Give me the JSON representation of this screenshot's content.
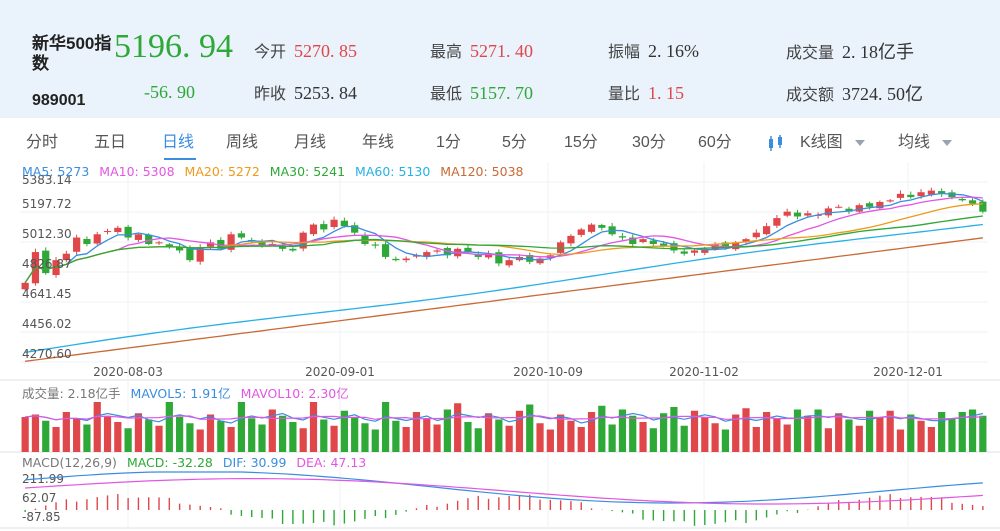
{
  "header": {
    "name": "新华500指数",
    "code": "989001",
    "last": "5196. 94",
    "change": "-56. 90",
    "stats": [
      {
        "label": "今开",
        "value": "5270. 85",
        "color": "#e0474a",
        "id": "open"
      },
      {
        "label": "最高",
        "value": "5271. 40",
        "color": "#e0474a",
        "id": "high"
      },
      {
        "label": "振幅",
        "value": "2. 16%",
        "color": "#444444",
        "id": "amplitude"
      },
      {
        "label": "成交量",
        "value": "2. 18亿手",
        "color": "#444444",
        "id": "volume"
      },
      {
        "label": "昨收",
        "value": "5253. 84",
        "color": "#444444",
        "id": "prev-close"
      },
      {
        "label": "最低",
        "value": "5157. 70",
        "color": "#2ea836",
        "id": "low"
      },
      {
        "label": "量比",
        "value": "1. 15",
        "color": "#e0474a",
        "id": "volume-ratio"
      },
      {
        "label": "成交额",
        "value": "3724. 50亿",
        "color": "#444444",
        "id": "turnover"
      }
    ]
  },
  "tabs": [
    "分时",
    "五日",
    "日线",
    "周线",
    "月线",
    "年线",
    "1分",
    "5分",
    "15分",
    "30分",
    "60分"
  ],
  "active_tab": "日线",
  "dropdowns": {
    "kline": "K线图",
    "ma": "均线"
  },
  "icons": {
    "kline": "candlestick-icon",
    "dropdown": "chevron-down-icon"
  },
  "colors": {
    "up": "#e0474a",
    "down": "#2ea836",
    "accent": "#3a8de0",
    "header_bg": "#eaf2fb"
  },
  "chart_data": {
    "type": "candlestick",
    "ma_legend": [
      {
        "text": "MA5: 5273",
        "color": "#3a8de0"
      },
      {
        "text": "MA10: 5308",
        "color": "#e356e3"
      },
      {
        "text": "MA20: 5272",
        "color": "#ee9a1a"
      },
      {
        "text": "MA30: 5241",
        "color": "#2ea836"
      },
      {
        "text": "MA60: 5130",
        "color": "#27b0e6"
      },
      {
        "text": "MA120: 5038",
        "color": "#c86a35"
      }
    ],
    "y_ticks": [
      "5383.14",
      "5197.72",
      "5012.30",
      "4826.87",
      "4641.45",
      "4456.02",
      "4270.60"
    ],
    "y_range": [
      4270.6,
      5383.14
    ],
    "dates": [
      "2020-08-03",
      "2020-09-01",
      "2020-10-09",
      "2020-11-02",
      "2020-12-01"
    ],
    "closes": [
      4760,
      4950,
      4820,
      4900,
      4940,
      5040,
      5000,
      5060,
      5080,
      5100,
      5040,
      5060,
      5000,
      5010,
      4980,
      4960,
      4900,
      4980,
      5010,
      4970,
      5060,
      5040,
      5020,
      4990,
      5000,
      4970,
      4960,
      5070,
      5120,
      5090,
      5150,
      5110,
      5070,
      5000,
      4990,
      4920,
      4900,
      4910,
      4930,
      4950,
      4960,
      4930,
      4970,
      4950,
      4920,
      4940,
      4880,
      4900,
      4920,
      4890,
      4910,
      4930,
      5010,
      5050,
      5090,
      5120,
      5100,
      5060,
      5040,
      5000,
      5030,
      5000,
      4990,
      4960,
      4940,
      4960,
      4970,
      5000,
      4980,
      5010,
      5030,
      5070,
      5110,
      5160,
      5200,
      5170,
      5190,
      5180,
      5220,
      5230,
      5200,
      5240,
      5230,
      5260,
      5270,
      5310,
      5290,
      5320,
      5330,
      5310,
      5290,
      5270,
      5250,
      5200
    ],
    "volume_legend": [
      {
        "text": "成交量: 2.18亿手",
        "color": "#777777"
      },
      {
        "text": "MAVOL5: 1.91亿",
        "color": "#3a8de0"
      },
      {
        "text": "MAVOL10: 2.30亿",
        "color": "#e356e3"
      }
    ],
    "macd_legend": [
      {
        "text": "MACD(12,26,9)",
        "color": "#777777"
      },
      {
        "text": "MACD: -32.28",
        "color": "#2ea836"
      },
      {
        "text": "DIF: 30.99",
        "color": "#3a8de0"
      },
      {
        "text": "DEA: 47.13",
        "color": "#e356e3"
      }
    ],
    "macd_ticks": [
      "211.99",
      "62.07",
      "-87.85"
    ]
  }
}
